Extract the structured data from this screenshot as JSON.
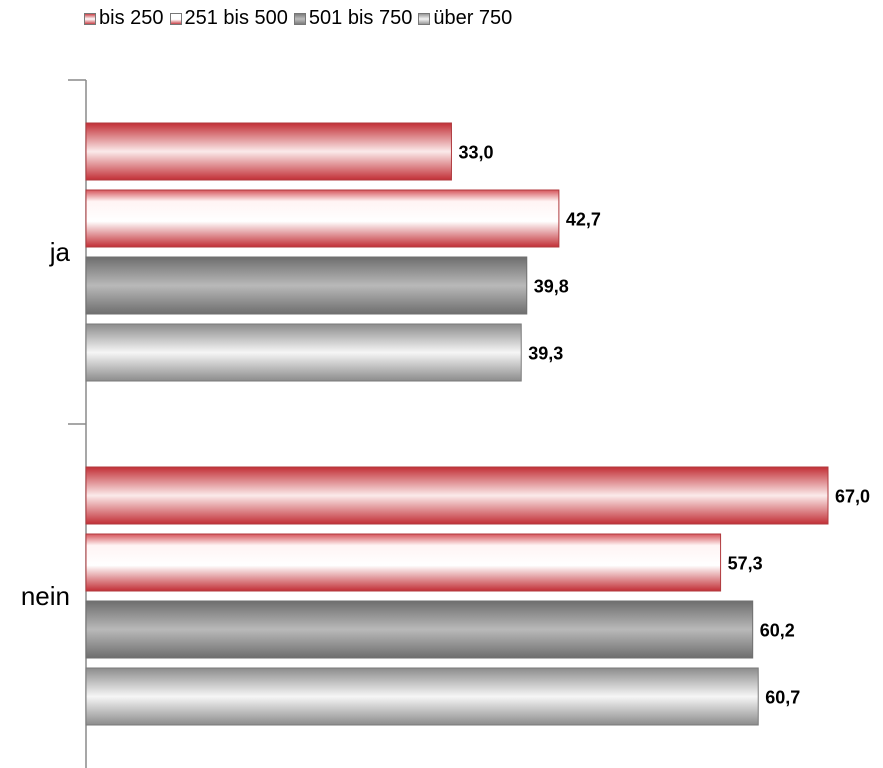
{
  "chart_data": {
    "type": "bar",
    "orientation": "horizontal",
    "categories": [
      "ja",
      "nein"
    ],
    "series": [
      {
        "name": "bis 250",
        "values": [
          33.0,
          67.0
        ],
        "labels": [
          "33,0",
          "67,0"
        ],
        "style": "red",
        "border": "#b03a3e"
      },
      {
        "name": "251 bis 500",
        "values": [
          42.7,
          57.3
        ],
        "labels": [
          "42,7",
          "57,3"
        ],
        "style": "red-light",
        "border": "#b03a3e"
      },
      {
        "name": "501 bis 750",
        "values": [
          39.8,
          60.2
        ],
        "labels": [
          "39,8",
          "60,2"
        ],
        "style": "gray-dark",
        "border": "#6f6f6f"
      },
      {
        "name": "über 750",
        "values": [
          39.3,
          60.7
        ],
        "labels": [
          "39,3",
          "60,7"
        ],
        "style": "gray-light",
        "border": "#7a7a7a"
      }
    ],
    "xlim": [
      0,
      67
    ],
    "legend_position": "top-left",
    "grid": false
  }
}
